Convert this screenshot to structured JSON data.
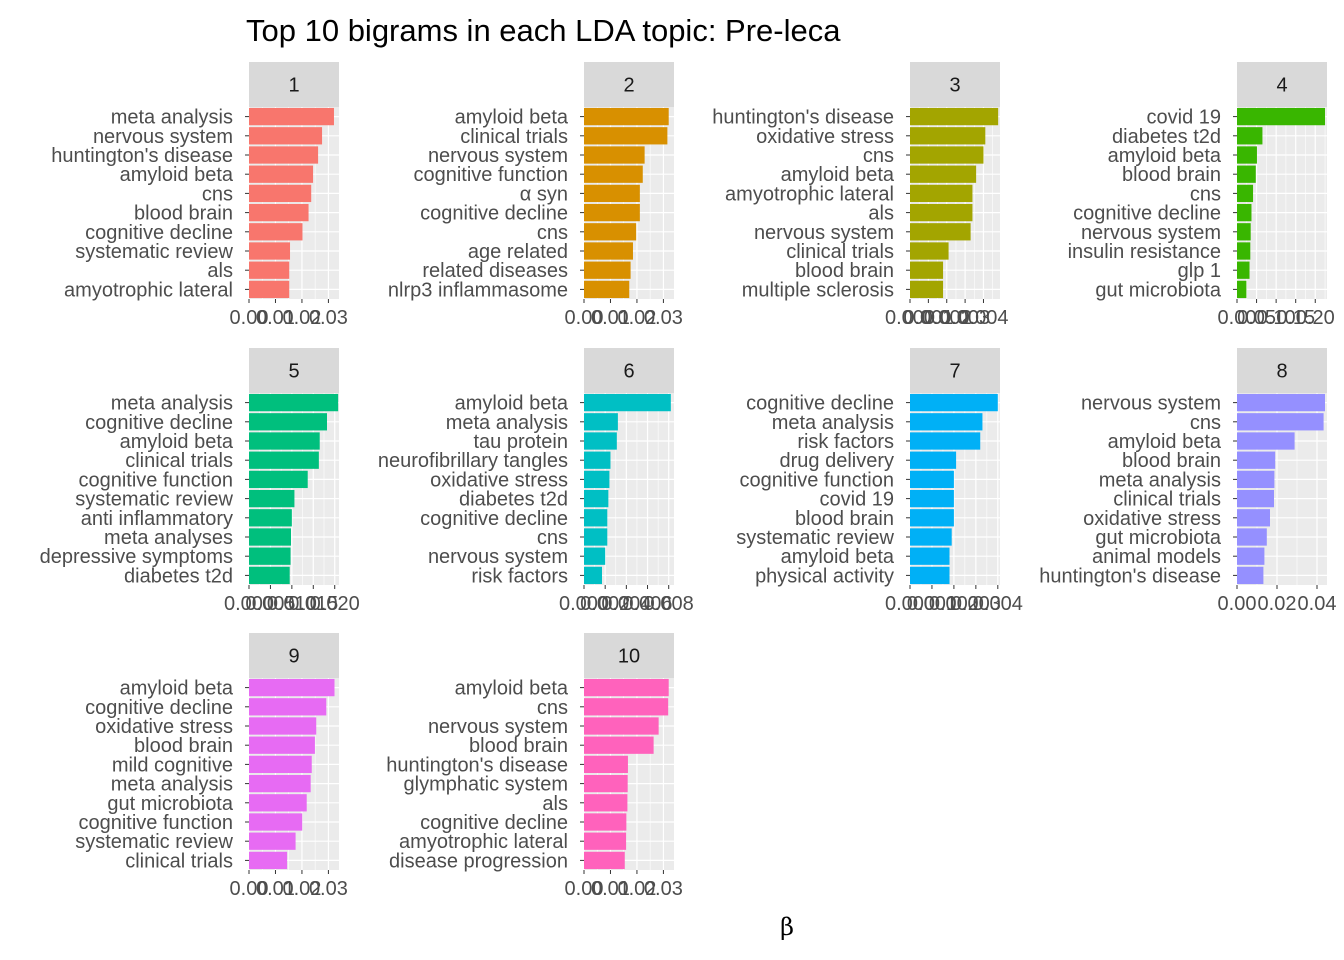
{
  "chart_data": {
    "type": "bar",
    "orientation": "horizontal",
    "title": "Top 10 bigrams in each LDA topic: Pre-leca",
    "xlabel": "β",
    "ylabel": "",
    "facet_strip_color": "#d9d9d9",
    "panel_background": "#ebebeb",
    "grid": true,
    "panels": [
      {
        "strip": "1",
        "color": "#F8766D",
        "xlim": [
          0,
          0.034
        ],
        "tick_values": [
          0,
          0.01,
          0.02,
          0.03
        ],
        "tick_labels": [
          "0.00",
          "0.01",
          "0.02",
          "0.03"
        ],
        "categories": [
          "meta analysis",
          "nervous system",
          "huntington's disease",
          "amyloid beta",
          "cns",
          "blood brain",
          "cognitive decline",
          "systematic review",
          "als",
          "amyotrophic lateral"
        ],
        "values": [
          0.0321,
          0.0276,
          0.0261,
          0.0242,
          0.0235,
          0.0225,
          0.0202,
          0.0155,
          0.0152,
          0.0152
        ]
      },
      {
        "strip": "2",
        "color": "#D89000",
        "xlim": [
          0,
          0.034
        ],
        "tick_values": [
          0,
          0.01,
          0.02,
          0.03
        ],
        "tick_labels": [
          "0.00",
          "0.01",
          "0.02",
          "0.03"
        ],
        "categories": [
          "amyloid beta",
          "clinical trials",
          "nervous system",
          "cognitive function",
          "α syn",
          "cognitive decline",
          "cns",
          "age related",
          "related diseases",
          "nlrp3 inflammasome"
        ],
        "values": [
          0.032,
          0.0315,
          0.0229,
          0.0222,
          0.0211,
          0.0211,
          0.0197,
          0.0185,
          0.0176,
          0.0171
        ]
      },
      {
        "strip": "3",
        "color": "#A3A500",
        "xlim": [
          0,
          0.0049
        ],
        "tick_values": [
          0,
          0.001,
          0.002,
          0.003,
          0.004
        ],
        "tick_labels": [
          "0.000",
          "0.001",
          "0.002",
          "0.003",
          "0.004"
        ],
        "categories": [
          "huntington's disease",
          "oxidative stress",
          "cns",
          "amyloid beta",
          "amyotrophic lateral",
          "als",
          "nervous system",
          "clinical trials",
          "blood brain",
          "multiple sclerosis"
        ],
        "values": [
          0.0048,
          0.0041,
          0.004,
          0.0036,
          0.0034,
          0.0034,
          0.0033,
          0.0021,
          0.0018,
          0.0018
        ]
      },
      {
        "strip": "4",
        "color": "#39B600",
        "xlim": [
          0,
          0.23
        ],
        "tick_values": [
          0,
          0.05,
          0.1,
          0.15,
          0.2
        ],
        "tick_labels": [
          "0.00",
          "0.05",
          "0.10",
          "0.15",
          "0.20"
        ],
        "categories": [
          "covid 19",
          "diabetes t2d",
          "amyloid beta",
          "blood brain",
          "cns",
          "cognitive decline",
          "nervous system",
          "insulin resistance",
          "glp 1",
          "gut microbiota"
        ],
        "values": [
          0.225,
          0.065,
          0.051,
          0.048,
          0.041,
          0.037,
          0.035,
          0.034,
          0.032,
          0.024
        ]
      },
      {
        "strip": "5",
        "color": "#00BF7D",
        "xlim": [
          0,
          0.021
        ],
        "tick_values": [
          0,
          0.005,
          0.01,
          0.015,
          0.02
        ],
        "tick_labels": [
          "0.000",
          "0.005",
          "0.010",
          "0.015",
          "0.020"
        ],
        "categories": [
          "meta analysis",
          "cognitive decline",
          "amyloid beta",
          "clinical trials",
          "cognitive function",
          "systematic review",
          "anti inflammatory",
          "meta analyses",
          "depressive symptoms",
          "diabetes t2d"
        ],
        "values": [
          0.0208,
          0.0182,
          0.0165,
          0.0163,
          0.0137,
          0.0106,
          0.01,
          0.0098,
          0.0097,
          0.0095
        ]
      },
      {
        "strip": "6",
        "color": "#00BFC4",
        "xlim": [
          0,
          0.0085
        ],
        "tick_values": [
          0,
          0.002,
          0.004,
          0.006,
          0.008
        ],
        "tick_labels": [
          "0.000",
          "0.002",
          "0.004",
          "0.006",
          "0.008"
        ],
        "categories": [
          "amyloid beta",
          "meta analysis",
          "tau protein",
          "neurofibrillary tangles",
          "oxidative stress",
          "diabetes t2d",
          "cognitive decline",
          "cns",
          "nervous system",
          "risk factors"
        ],
        "values": [
          0.0082,
          0.0032,
          0.0031,
          0.0025,
          0.0024,
          0.0023,
          0.0022,
          0.0022,
          0.002,
          0.0017
        ]
      },
      {
        "strip": "7",
        "color": "#00B0F6",
        "xlim": [
          0,
          0.0041
        ],
        "tick_values": [
          0,
          0.001,
          0.002,
          0.003,
          0.004
        ],
        "tick_labels": [
          "0.000",
          "0.001",
          "0.002",
          "0.003",
          "0.004"
        ],
        "categories": [
          "cognitive decline",
          "meta analysis",
          "risk factors",
          "drug delivery",
          "cognitive function",
          "covid 19",
          "blood brain",
          "systematic review",
          "amyloid beta",
          "physical activity"
        ],
        "values": [
          0.004,
          0.0033,
          0.0032,
          0.0021,
          0.002,
          0.002,
          0.002,
          0.0019,
          0.0018,
          0.0018
        ]
      },
      {
        "strip": "8",
        "color": "#9590FF",
        "xlim": [
          0,
          0.045
        ],
        "tick_values": [
          0,
          0.02,
          0.04
        ],
        "tick_labels": [
          "0.00",
          "0.02",
          "0.04"
        ],
        "categories": [
          "nervous system",
          "cns",
          "amyloid beta",
          "blood brain",
          "meta analysis",
          "clinical trials",
          "oxidative stress",
          "gut microbiota",
          "animal models",
          "huntington's disease"
        ],
        "values": [
          0.044,
          0.0433,
          0.0288,
          0.0191,
          0.0187,
          0.0185,
          0.0165,
          0.0149,
          0.0137,
          0.0132
        ]
      },
      {
        "strip": "9",
        "color": "#E76BF3",
        "xlim": [
          0,
          0.034
        ],
        "tick_values": [
          0,
          0.01,
          0.02,
          0.03
        ],
        "tick_labels": [
          "0.00",
          "0.01",
          "0.02",
          "0.03"
        ],
        "categories": [
          "amyloid beta",
          "cognitive decline",
          "oxidative stress",
          "blood brain",
          "mild cognitive",
          "meta analysis",
          "gut microbiota",
          "cognitive function",
          "systematic review",
          "clinical trials"
        ],
        "values": [
          0.0323,
          0.0292,
          0.0254,
          0.0249,
          0.0237,
          0.0233,
          0.0218,
          0.0201,
          0.0176,
          0.0144
        ]
      },
      {
        "strip": "10",
        "color": "#FF62BC",
        "xlim": [
          0,
          0.034
        ],
        "tick_values": [
          0,
          0.01,
          0.02,
          0.03
        ],
        "tick_labels": [
          "0.00",
          "0.01",
          "0.02",
          "0.03"
        ],
        "categories": [
          "amyloid beta",
          "cns",
          "nervous system",
          "blood brain",
          "huntington's disease",
          "glymphatic system",
          "als",
          "cognitive decline",
          "amyotrophic lateral",
          "disease progression"
        ],
        "values": [
          0.032,
          0.0318,
          0.0282,
          0.0263,
          0.0166,
          0.0165,
          0.0164,
          0.016,
          0.0159,
          0.0154
        ]
      }
    ]
  }
}
